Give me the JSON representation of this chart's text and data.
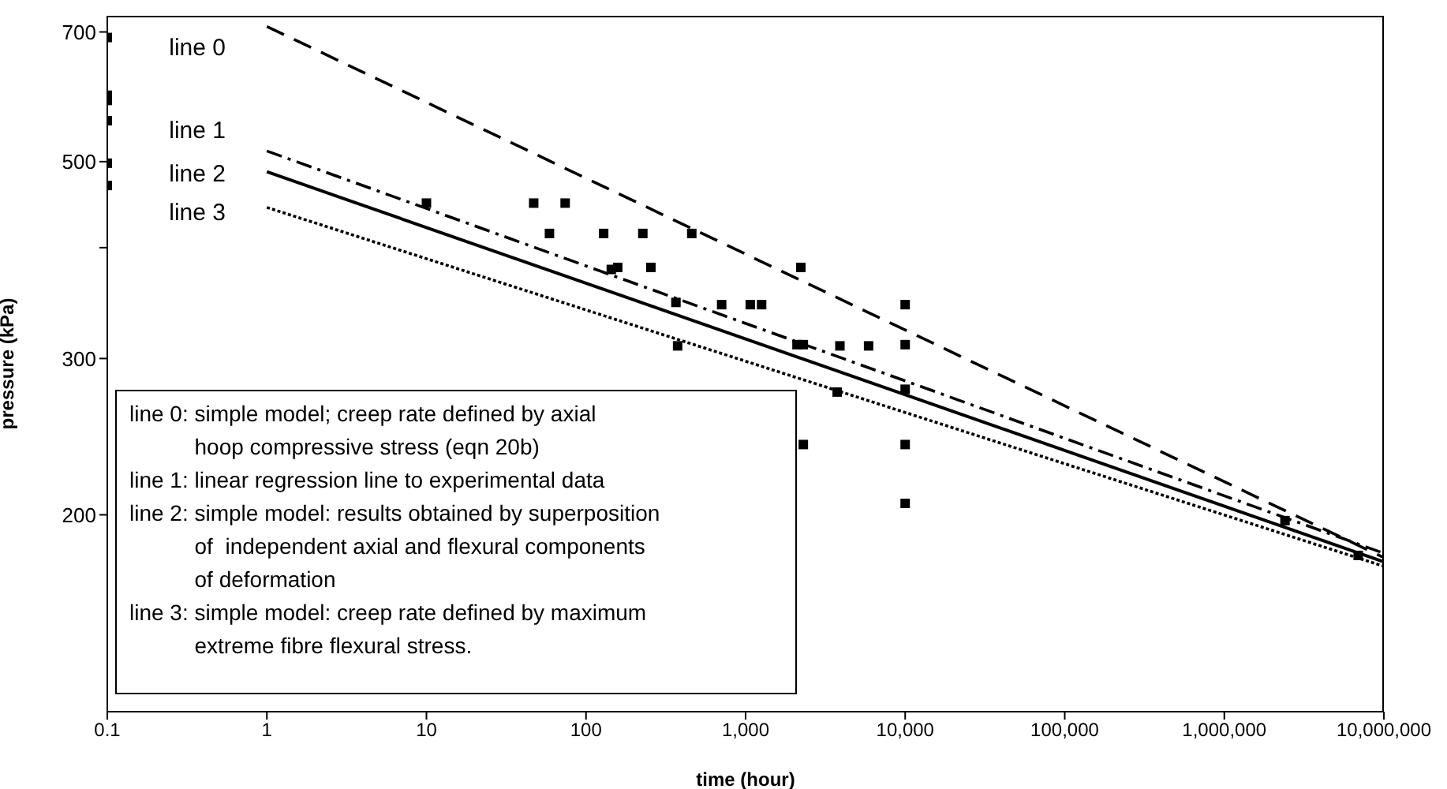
{
  "chart_data": {
    "type": "line",
    "xlabel": "time (hour)",
    "ylabel": "pressure (kPa)",
    "log": "xy",
    "xlim": [
      0.1,
      10000000
    ],
    "ylim": [
      120,
      730
    ],
    "xticks": [
      0.1,
      1,
      10,
      100,
      {
        "value": 1000,
        "label": "1,000"
      },
      {
        "value": 10000,
        "label": "10,000"
      },
      {
        "value": 100000,
        "label": "100,000"
      },
      {
        "value": 1000000,
        "label": "1,000,000"
      },
      {
        "value": 10000000,
        "label": "10,000,000"
      }
    ],
    "yticks": [
      200,
      300,
      {
        "value": 400,
        "label": null
      },
      500,
      700
    ],
    "series": [
      {
        "name": "line 0",
        "color": "#000000",
        "line_style": "dashed",
        "marker": "none",
        "x": [
          1,
          10000000
        ],
        "values": [
          710,
          179
        ]
      },
      {
        "name": "line 1",
        "color": "#000000",
        "line_style": "dashdot",
        "marker": "none",
        "x": [
          1,
          10000000
        ],
        "values": [
          514,
          181
        ]
      },
      {
        "name": "line 2",
        "color": "#000000",
        "line_style": "solid",
        "marker": "none",
        "x": [
          1,
          10000000
        ],
        "values": [
          487,
          177
        ]
      },
      {
        "name": "line 3",
        "color": "#000000",
        "line_style": "dotted",
        "marker": "none",
        "x": [
          1,
          10000000
        ],
        "values": [
          444,
          175
        ]
      },
      {
        "type": "scatter",
        "color": "#000000",
        "marker": "square",
        "x": [
          0.1,
          0.1,
          0.1,
          0.1,
          0.1,
          0.1,
          10,
          47,
          74,
          59,
          129,
          227,
          144,
          158,
          255,
          366,
          708,
          375,
          460,
          2220,
          10000,
          1070,
          1260,
          2100,
          2300,
          3900,
          5900,
          10000,
          3750,
          10000,
          2300,
          10000,
          10000,
          2400000,
          6900000
        ],
        "values": [
          690,
          594,
          586,
          556,
          498,
          470,
          449,
          449,
          449,
          415,
          415,
          415,
          378,
          380,
          380,
          347,
          345,
          310,
          415,
          380,
          345,
          345,
          345,
          311,
          311,
          310,
          310,
          311,
          275,
          277,
          240,
          240,
          206,
          197,
          180
        ]
      }
    ],
    "annotations": [
      "line 0: simple model; creep rate defined by axial\nhoop compressive stress (eqn 20b)",
      "line 1: linear regression line to experimental data",
      "line 2: simple model: results obtained by superposition\nof  independent axial and flexural components\nof deformation",
      "line 3: simple model: creep rate defined by maximum\nextreme fibre flexural stress."
    ]
  }
}
